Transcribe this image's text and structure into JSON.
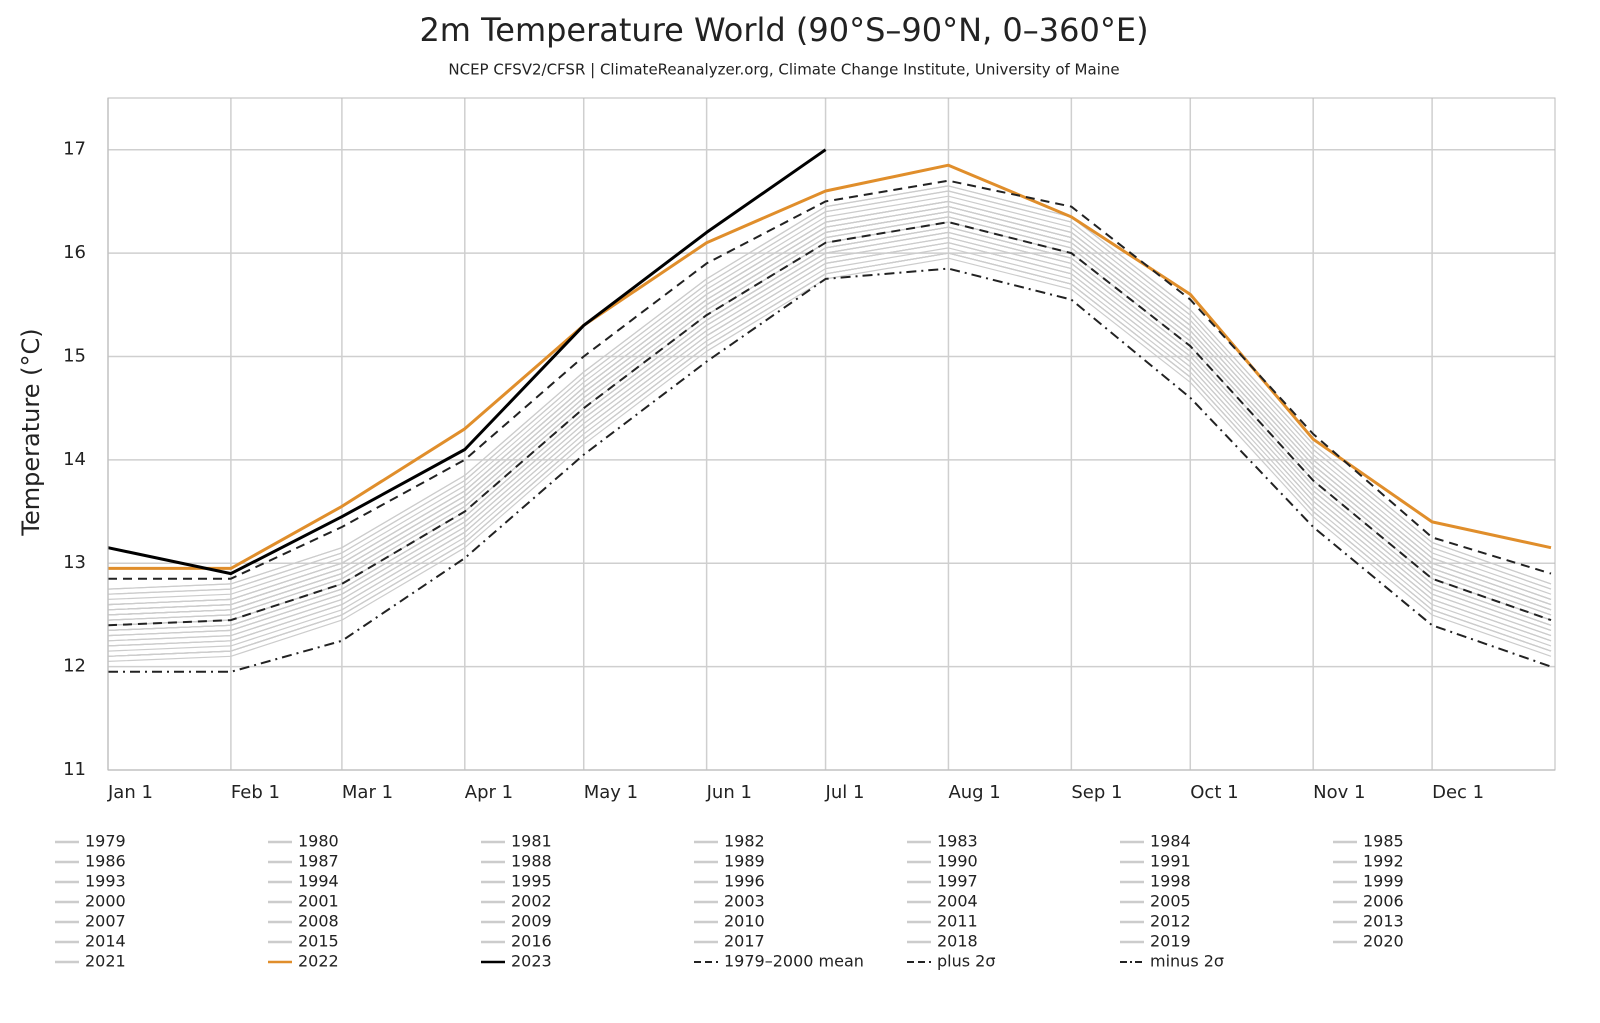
{
  "chart_data": {
    "type": "line",
    "title": "2m Temperature World (90°S–90°N, 0–360°E)",
    "subtitle": "NCEP CFSV2/CFSR | ClimateReanalyzer.org, Climate Change Institute, University of Maine",
    "y_label": "Temperature (°C)",
    "x": [
      1,
      32,
      60,
      91,
      121,
      152,
      182,
      213,
      244,
      274,
      305,
      335,
      365
    ],
    "xlim": [
      1,
      366
    ],
    "xticks": [
      {
        "value": 1,
        "label": "Jan 1"
      },
      {
        "value": 32,
        "label": "Feb 1"
      },
      {
        "value": 60,
        "label": "Mar 1"
      },
      {
        "value": 91,
        "label": "Apr 1"
      },
      {
        "value": 121,
        "label": "May 1"
      },
      {
        "value": 152,
        "label": "Jun 1"
      },
      {
        "value": 182,
        "label": "Jul 1"
      },
      {
        "value": 213,
        "label": "Aug 1"
      },
      {
        "value": 244,
        "label": "Sep 1"
      },
      {
        "value": 274,
        "label": "Oct 1"
      },
      {
        "value": 305,
        "label": "Nov 1"
      },
      {
        "value": 335,
        "label": "Dec 1"
      }
    ],
    "ylim": [
      11,
      17.5
    ],
    "yticks": [
      11,
      12,
      13,
      14,
      15,
      16,
      17
    ],
    "grid": true,
    "series": [
      {
        "name": "1979",
        "color": "#cccccc",
        "values": [
          12.15,
          12.2,
          12.55,
          13.25,
          14.25,
          15.15,
          15.85,
          16.05,
          15.75,
          14.85,
          13.55,
          12.6,
          12.2
        ]
      },
      {
        "name": "1980",
        "color": "#cccccc",
        "values": [
          12.25,
          12.3,
          12.65,
          13.35,
          14.35,
          15.25,
          15.95,
          16.15,
          15.85,
          14.95,
          13.65,
          12.7,
          12.3
        ]
      },
      {
        "name": "1981",
        "color": "#cccccc",
        "values": [
          12.3,
          12.35,
          12.7,
          13.4,
          14.4,
          15.3,
          16.0,
          16.2,
          15.9,
          15.0,
          13.7,
          12.75,
          12.35
        ]
      },
      {
        "name": "1982",
        "color": "#cccccc",
        "values": [
          12.1,
          12.15,
          12.5,
          13.2,
          14.2,
          15.1,
          15.8,
          16.0,
          15.7,
          14.8,
          13.5,
          12.55,
          12.15
        ]
      },
      {
        "name": "1983",
        "color": "#cccccc",
        "values": [
          12.35,
          12.4,
          12.75,
          13.45,
          14.45,
          15.35,
          16.05,
          16.25,
          15.95,
          15.05,
          13.75,
          12.8,
          12.4
        ]
      },
      {
        "name": "1984",
        "color": "#cccccc",
        "values": [
          12.1,
          12.15,
          12.5,
          13.2,
          14.2,
          15.1,
          15.8,
          16.0,
          15.7,
          14.8,
          13.5,
          12.55,
          12.15
        ]
      },
      {
        "name": "1985",
        "color": "#cccccc",
        "values": [
          12.1,
          12.15,
          12.5,
          13.2,
          14.2,
          15.1,
          15.8,
          16.0,
          15.7,
          14.8,
          13.5,
          12.55,
          12.15
        ]
      },
      {
        "name": "1986",
        "color": "#cccccc",
        "values": [
          12.2,
          12.25,
          12.6,
          13.3,
          14.3,
          15.2,
          15.9,
          16.1,
          15.8,
          14.9,
          13.6,
          12.65,
          12.25
        ]
      },
      {
        "name": "1987",
        "color": "#cccccc",
        "values": [
          12.3,
          12.35,
          12.7,
          13.4,
          14.4,
          15.3,
          16.0,
          16.2,
          15.9,
          15.0,
          13.7,
          12.75,
          12.35
        ]
      },
      {
        "name": "1988",
        "color": "#cccccc",
        "values": [
          12.4,
          12.45,
          12.8,
          13.5,
          14.5,
          15.4,
          16.1,
          16.3,
          16.0,
          15.1,
          13.8,
          12.85,
          12.45
        ]
      },
      {
        "name": "1989",
        "color": "#cccccc",
        "values": [
          12.2,
          12.25,
          12.6,
          13.3,
          14.3,
          15.2,
          15.9,
          16.1,
          15.8,
          14.9,
          13.6,
          12.65,
          12.25
        ]
      },
      {
        "name": "1990",
        "color": "#cccccc",
        "values": [
          12.35,
          12.4,
          12.75,
          13.45,
          14.45,
          15.35,
          16.05,
          16.25,
          15.95,
          15.05,
          13.75,
          12.8,
          12.4
        ]
      },
      {
        "name": "1991",
        "color": "#cccccc",
        "values": [
          12.3,
          12.35,
          12.7,
          13.4,
          14.4,
          15.3,
          16.0,
          16.2,
          15.9,
          15.0,
          13.7,
          12.75,
          12.35
        ]
      },
      {
        "name": "1992",
        "color": "#cccccc",
        "values": [
          12.05,
          12.1,
          12.45,
          13.15,
          14.15,
          15.05,
          15.75,
          15.95,
          15.65,
          14.75,
          13.45,
          12.5,
          12.1
        ]
      },
      {
        "name": "1993",
        "color": "#cccccc",
        "values": [
          12.1,
          12.15,
          12.5,
          13.2,
          14.2,
          15.1,
          15.8,
          16.0,
          15.7,
          14.8,
          13.5,
          12.55,
          12.15
        ]
      },
      {
        "name": "1994",
        "color": "#cccccc",
        "values": [
          12.25,
          12.3,
          12.65,
          13.35,
          14.35,
          15.25,
          15.95,
          16.15,
          15.85,
          14.95,
          13.65,
          12.7,
          12.3
        ]
      },
      {
        "name": "1995",
        "color": "#cccccc",
        "values": [
          12.4,
          12.45,
          12.8,
          13.5,
          14.5,
          15.4,
          16.1,
          16.3,
          16.0,
          15.1,
          13.8,
          12.85,
          12.45
        ]
      },
      {
        "name": "1996",
        "color": "#cccccc",
        "values": [
          12.2,
          12.25,
          12.6,
          13.3,
          14.3,
          15.2,
          15.9,
          16.1,
          15.8,
          14.9,
          13.6,
          12.65,
          12.25
        ]
      },
      {
        "name": "1997",
        "color": "#cccccc",
        "values": [
          12.4,
          12.45,
          12.8,
          13.5,
          14.5,
          15.4,
          16.1,
          16.3,
          16.0,
          15.1,
          13.8,
          12.85,
          12.45
        ]
      },
      {
        "name": "1998",
        "color": "#cccccc",
        "values": [
          12.55,
          12.6,
          12.95,
          13.65,
          14.65,
          15.55,
          16.25,
          16.45,
          16.15,
          15.25,
          13.95,
          13.0,
          12.6
        ]
      },
      {
        "name": "1999",
        "color": "#cccccc",
        "values": [
          12.35,
          12.4,
          12.75,
          13.45,
          14.45,
          15.35,
          16.05,
          16.25,
          15.95,
          15.05,
          13.75,
          12.8,
          12.4
        ]
      },
      {
        "name": "2000",
        "color": "#cccccc",
        "values": [
          12.35,
          12.4,
          12.75,
          13.45,
          14.45,
          15.35,
          16.05,
          16.25,
          15.95,
          15.05,
          13.75,
          12.8,
          12.4
        ]
      },
      {
        "name": "2001",
        "color": "#cccccc",
        "values": [
          12.45,
          12.5,
          12.85,
          13.55,
          14.55,
          15.45,
          16.15,
          16.35,
          16.05,
          15.15,
          13.85,
          12.9,
          12.5
        ]
      },
      {
        "name": "2002",
        "color": "#cccccc",
        "values": [
          12.5,
          12.55,
          12.9,
          13.6,
          14.6,
          15.5,
          16.2,
          16.4,
          16.1,
          15.2,
          13.9,
          12.95,
          12.55
        ]
      },
      {
        "name": "2003",
        "color": "#cccccc",
        "values": [
          12.5,
          12.55,
          12.9,
          13.6,
          14.6,
          15.5,
          16.2,
          16.4,
          16.1,
          15.2,
          13.9,
          12.95,
          12.55
        ]
      },
      {
        "name": "2004",
        "color": "#cccccc",
        "values": [
          12.45,
          12.5,
          12.85,
          13.55,
          14.55,
          15.45,
          16.15,
          16.35,
          16.05,
          15.15,
          13.85,
          12.9,
          12.5
        ]
      },
      {
        "name": "2005",
        "color": "#cccccc",
        "values": [
          12.55,
          12.6,
          12.95,
          13.65,
          14.65,
          15.55,
          16.25,
          16.45,
          16.15,
          15.25,
          13.95,
          13.0,
          12.6
        ]
      },
      {
        "name": "2006",
        "color": "#cccccc",
        "values": [
          12.5,
          12.55,
          12.9,
          13.6,
          14.6,
          15.5,
          16.2,
          16.4,
          16.1,
          15.2,
          13.9,
          12.95,
          12.55
        ]
      },
      {
        "name": "2007",
        "color": "#cccccc",
        "values": [
          12.55,
          12.6,
          12.95,
          13.65,
          14.65,
          15.55,
          16.25,
          16.45,
          16.15,
          15.25,
          13.95,
          13.0,
          12.6
        ]
      },
      {
        "name": "2008",
        "color": "#cccccc",
        "values": [
          12.4,
          12.45,
          12.8,
          13.5,
          14.5,
          15.4,
          16.1,
          16.3,
          16.0,
          15.1,
          13.8,
          12.85,
          12.45
        ]
      },
      {
        "name": "2009",
        "color": "#cccccc",
        "values": [
          12.5,
          12.55,
          12.9,
          13.6,
          14.6,
          15.5,
          16.2,
          16.4,
          16.1,
          15.2,
          13.9,
          12.95,
          12.55
        ]
      },
      {
        "name": "2010",
        "color": "#cccccc",
        "values": [
          12.6,
          12.65,
          13.0,
          13.7,
          14.7,
          15.6,
          16.3,
          16.5,
          16.2,
          15.3,
          14.0,
          13.05,
          12.65
        ]
      },
      {
        "name": "2011",
        "color": "#cccccc",
        "values": [
          12.45,
          12.5,
          12.85,
          13.55,
          14.55,
          15.45,
          16.15,
          16.35,
          16.05,
          15.15,
          13.85,
          12.9,
          12.5
        ]
      },
      {
        "name": "2012",
        "color": "#cccccc",
        "values": [
          12.5,
          12.55,
          12.9,
          13.6,
          14.6,
          15.5,
          16.2,
          16.4,
          16.1,
          15.2,
          13.9,
          12.95,
          12.55
        ]
      },
      {
        "name": "2013",
        "color": "#cccccc",
        "values": [
          12.55,
          12.6,
          12.95,
          13.65,
          14.65,
          15.55,
          16.25,
          16.45,
          16.15,
          15.25,
          13.95,
          13.0,
          12.6
        ]
      },
      {
        "name": "2014",
        "color": "#cccccc",
        "values": [
          12.6,
          12.65,
          13.0,
          13.7,
          14.7,
          15.6,
          16.3,
          16.5,
          16.2,
          15.3,
          14.0,
          13.05,
          12.65
        ]
      },
      {
        "name": "2015",
        "color": "#cccccc",
        "values": [
          12.65,
          12.7,
          13.05,
          13.75,
          14.75,
          15.65,
          16.35,
          16.55,
          16.25,
          15.35,
          14.05,
          13.1,
          12.7
        ]
      },
      {
        "name": "2016",
        "color": "#cccccc",
        "values": [
          12.75,
          12.8,
          13.15,
          13.85,
          14.85,
          15.75,
          16.45,
          16.65,
          16.35,
          15.45,
          14.15,
          13.2,
          12.8
        ]
      },
      {
        "name": "2017",
        "color": "#cccccc",
        "values": [
          12.7,
          12.75,
          13.1,
          13.8,
          14.8,
          15.7,
          16.4,
          16.6,
          16.3,
          15.4,
          14.1,
          13.15,
          12.75
        ]
      },
      {
        "name": "2018",
        "color": "#cccccc",
        "values": [
          12.6,
          12.65,
          13.0,
          13.7,
          14.7,
          15.6,
          16.3,
          16.5,
          16.2,
          15.3,
          14.0,
          13.05,
          12.65
        ]
      },
      {
        "name": "2019",
        "color": "#cccccc",
        "values": [
          12.7,
          12.75,
          13.1,
          13.8,
          14.8,
          15.7,
          16.4,
          16.6,
          16.3,
          15.4,
          14.1,
          13.15,
          12.75
        ]
      },
      {
        "name": "2020",
        "color": "#cccccc",
        "values": [
          12.75,
          12.8,
          13.15,
          13.85,
          14.85,
          15.75,
          16.45,
          16.65,
          16.35,
          15.45,
          14.15,
          13.2,
          12.8
        ]
      },
      {
        "name": "2021",
        "color": "#cccccc",
        "values": [
          12.6,
          12.65,
          13.0,
          13.7,
          14.7,
          15.6,
          16.3,
          16.5,
          16.2,
          15.3,
          14.0,
          13.05,
          12.65
        ]
      },
      {
        "name": "2022",
        "color": "#e08e2b",
        "values": [
          12.95,
          12.95,
          13.55,
          14.3,
          15.3,
          16.1,
          16.6,
          16.85,
          16.35,
          15.6,
          14.2,
          13.4,
          13.15
        ]
      },
      {
        "name": "2023",
        "color": "#000000",
        "values": [
          13.15,
          12.9,
          13.45,
          14.1,
          15.3,
          16.2,
          17.0,
          null,
          null,
          null,
          null,
          null,
          null
        ]
      },
      {
        "name": "1979–2000 mean",
        "color": "#222222",
        "dash": "dashed",
        "values": [
          12.4,
          12.45,
          12.8,
          13.5,
          14.5,
          15.4,
          16.1,
          16.3,
          16.0,
          15.1,
          13.8,
          12.85,
          12.45
        ]
      },
      {
        "name": "plus 2σ",
        "color": "#222222",
        "dash": "dashed",
        "values": [
          12.85,
          12.85,
          13.35,
          14.0,
          15.0,
          15.9,
          16.5,
          16.7,
          16.45,
          15.55,
          14.25,
          13.25,
          12.9
        ]
      },
      {
        "name": "minus 2σ",
        "color": "#222222",
        "dash": "dashdot",
        "values": [
          11.95,
          11.95,
          12.25,
          13.05,
          14.05,
          14.95,
          15.75,
          15.85,
          15.55,
          14.6,
          13.35,
          12.4,
          12.0
        ]
      }
    ]
  }
}
